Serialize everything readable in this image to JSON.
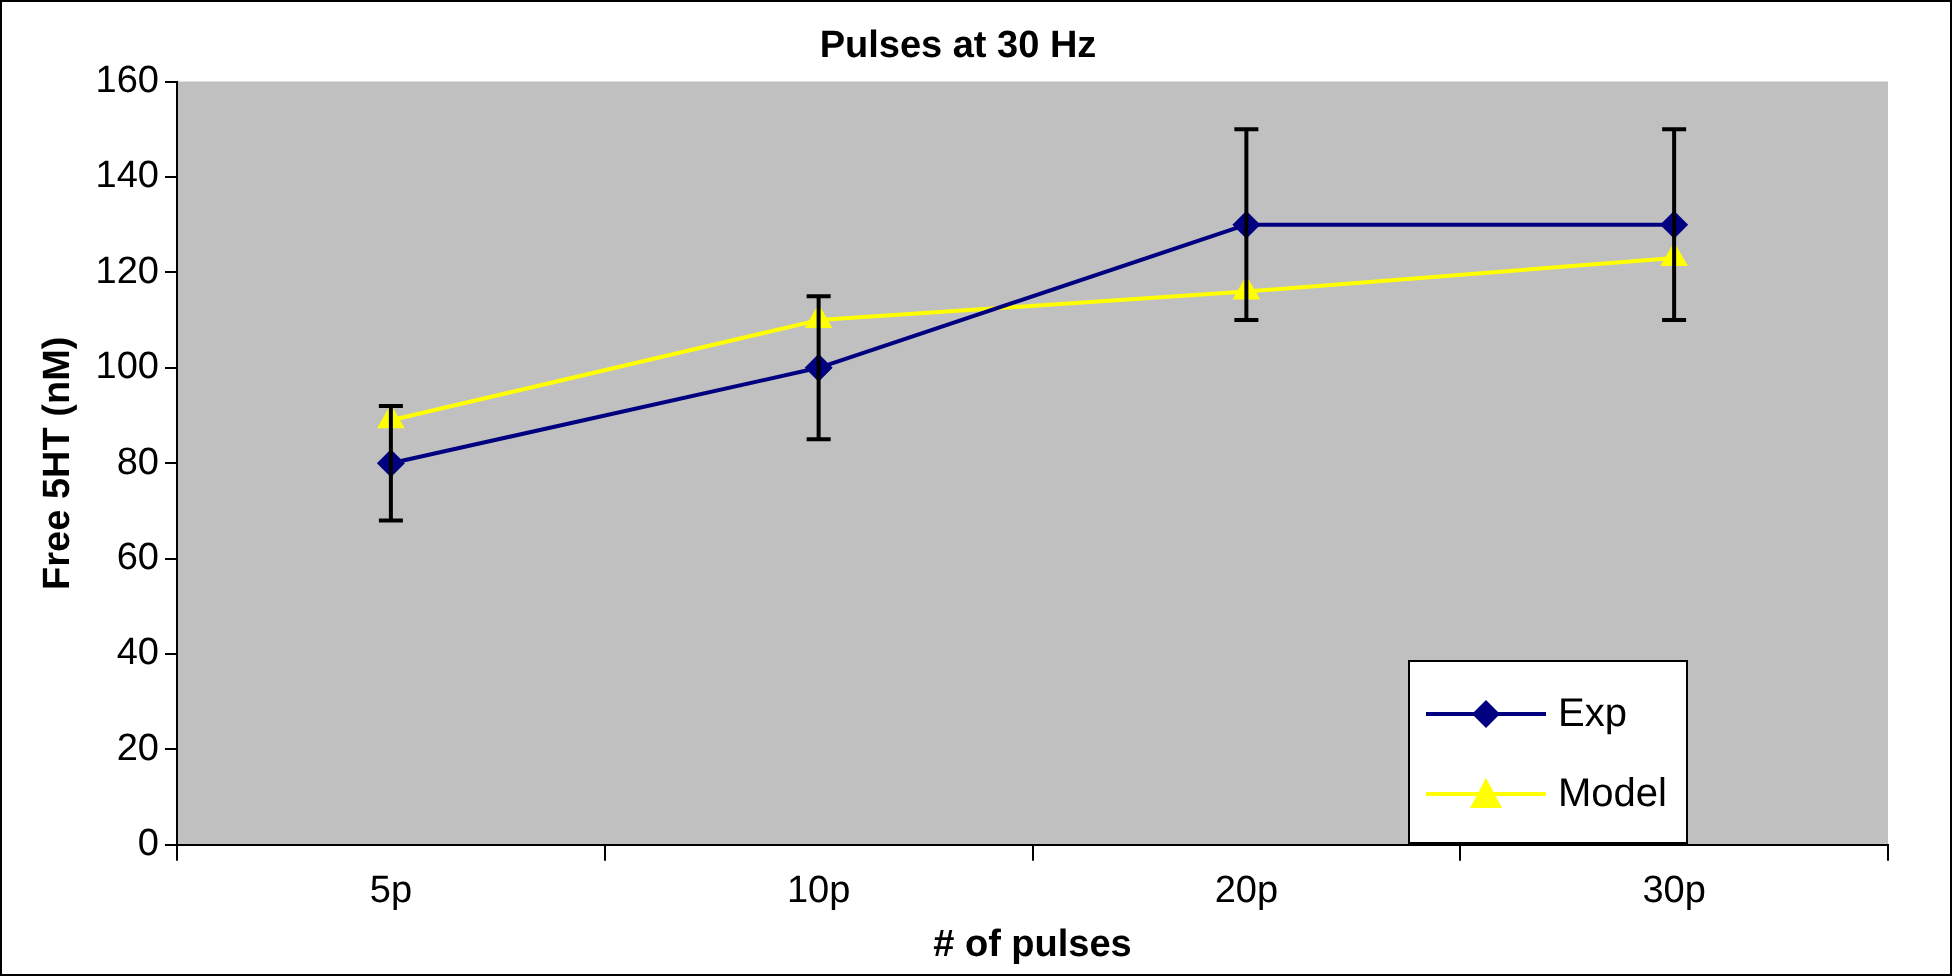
{
  "chart_data": {
    "type": "line",
    "title": "Pulses at 30 Hz",
    "xlabel": "# of pulses",
    "ylabel": "Free 5HT (nM)",
    "categories": [
      "5p",
      "10p",
      "20p",
      "30p"
    ],
    "series": [
      {
        "name": "Exp",
        "color": "#000080",
        "marker": "diamond",
        "values": [
          80,
          100,
          130,
          130
        ],
        "errors": [
          12,
          15,
          20,
          20
        ]
      },
      {
        "name": "Model",
        "color": "#ffff00",
        "marker": "triangle",
        "values": [
          89,
          110,
          116,
          123
        ]
      }
    ],
    "ylim": [
      0,
      160
    ],
    "yticks": [
      0,
      20,
      40,
      60,
      80,
      100,
      120,
      140,
      160
    ],
    "grid": false,
    "legend": "bottom right"
  }
}
